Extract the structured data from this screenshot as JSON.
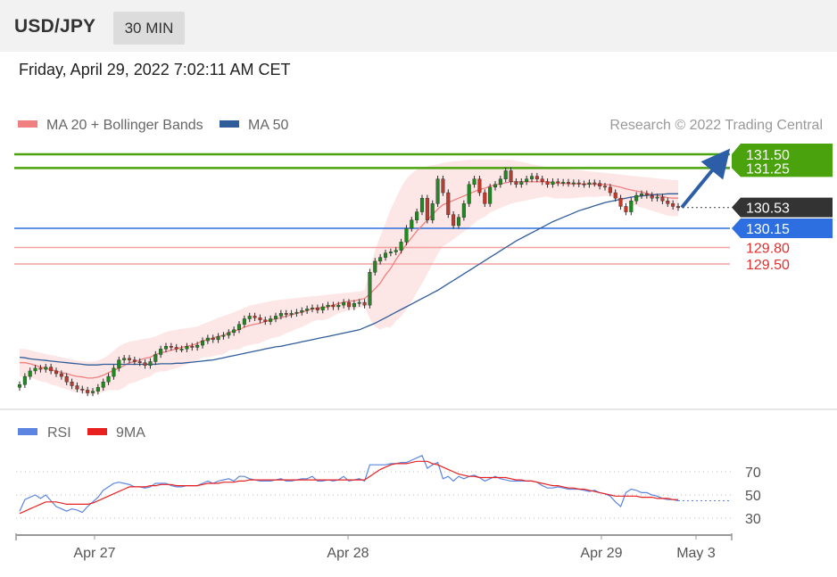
{
  "header": {
    "pair": "USD/JPY",
    "timeframe": "30 MIN"
  },
  "datetime": "Friday, April 29, 2022 7:02:11 AM CET",
  "legend": {
    "ma20_label": "MA 20 + Bollinger Bands",
    "ma50_label": "MA 50",
    "copyright": "Research © 2022 Trading Central",
    "rsi_label": "RSI",
    "rsi_ma_label": "9MA"
  },
  "colors": {
    "green": "#4aa30c",
    "blue_level": "#2d6fe0",
    "red_level": "#e03030",
    "current": "#333333",
    "ma20": "#f08080",
    "ma50": "#2f5d99",
    "band_fill": "#fde2e2",
    "candle_green": "#1f8a1f",
    "candle_red": "#c0392b",
    "rsi": "#5b85e0",
    "rsi_ma": "#e82020",
    "arrow": "#2b5ea7"
  },
  "chart_data": {
    "type": "candlestick",
    "instrument": "USD/JPY",
    "interval": "30 MIN",
    "ylim": [
      127.0,
      131.9
    ],
    "x_ticks": [
      "Apr 27",
      "Apr 28",
      "Apr 29",
      "May 3"
    ],
    "levels": [
      {
        "value": 131.5,
        "label": "131.50",
        "kind": "resistance",
        "color": "#4aa30c"
      },
      {
        "value": 131.25,
        "label": "131.25",
        "kind": "resistance",
        "color": "#4aa30c"
      },
      {
        "value": 130.53,
        "label": "130.53",
        "kind": "current",
        "color": "#333333"
      },
      {
        "value": 130.15,
        "label": "130.15",
        "kind": "pivot",
        "color": "#2d6fe0"
      },
      {
        "value": 129.8,
        "label": "129.80",
        "kind": "support",
        "color": "#e03030"
      },
      {
        "value": 129.5,
        "label": "129.50",
        "kind": "support",
        "color": "#e03030"
      }
    ],
    "closes": [
      127.3,
      127.45,
      127.55,
      127.6,
      127.58,
      127.62,
      127.55,
      127.5,
      127.45,
      127.35,
      127.28,
      127.22,
      127.2,
      127.15,
      127.18,
      127.25,
      127.35,
      127.45,
      127.6,
      127.75,
      127.78,
      127.75,
      127.72,
      127.7,
      127.65,
      127.72,
      127.85,
      127.95,
      128.0,
      127.98,
      127.95,
      127.95,
      128.0,
      127.98,
      128.02,
      128.1,
      128.15,
      128.12,
      128.18,
      128.2,
      128.25,
      128.3,
      128.4,
      128.5,
      128.55,
      128.52,
      128.48,
      128.45,
      128.5,
      128.55,
      128.6,
      128.58,
      128.6,
      128.62,
      128.65,
      128.68,
      128.7,
      128.66,
      128.72,
      128.75,
      128.72,
      128.75,
      128.8,
      128.72,
      128.78,
      128.8,
      128.75,
      129.35,
      129.55,
      129.62,
      129.7,
      129.72,
      129.75,
      129.9,
      130.15,
      130.3,
      130.45,
      130.7,
      130.3,
      130.6,
      131.05,
      130.8,
      130.4,
      130.2,
      130.35,
      130.6,
      130.95,
      131.05,
      130.8,
      130.6,
      130.9,
      130.95,
      131.05,
      131.2,
      131.0,
      130.95,
      131.0,
      131.05,
      131.1,
      131.05,
      131.0,
      130.95,
      131.0,
      130.98,
      130.99,
      130.97,
      130.98,
      130.96,
      130.95,
      130.98,
      130.97,
      130.92,
      130.9,
      130.8,
      130.7,
      130.55,
      130.45,
      130.65,
      130.75,
      130.78,
      130.75,
      130.7,
      130.72,
      130.65,
      130.6,
      130.55,
      130.53
    ],
    "ma20": [
      127.7,
      127.7,
      127.68,
      127.65,
      127.62,
      127.6,
      127.57,
      127.55,
      127.52,
      127.5,
      127.47,
      127.45,
      127.44,
      127.42,
      127.42,
      127.44,
      127.47,
      127.52,
      127.56,
      127.6,
      127.65,
      127.7,
      127.72,
      127.75,
      127.78,
      127.8,
      127.85,
      127.88,
      127.9,
      127.93,
      127.95,
      127.98,
      128.0,
      128.02,
      128.05,
      128.1,
      128.12,
      128.15,
      128.18,
      128.2,
      128.25,
      128.28,
      128.3,
      128.35,
      128.38,
      128.4,
      128.42,
      128.45,
      128.48,
      128.5,
      128.52,
      128.55,
      128.57,
      128.6,
      128.62,
      128.65,
      128.68,
      128.7,
      128.7,
      128.72,
      128.75,
      128.78,
      128.8,
      128.82,
      128.83,
      128.85,
      128.87,
      128.95,
      129.05,
      129.15,
      129.3,
      129.42,
      129.58,
      129.72,
      129.86,
      129.98,
      130.1,
      130.2,
      130.3,
      130.4,
      130.5,
      130.58,
      130.62,
      130.66,
      130.7,
      130.74,
      130.78,
      130.82,
      130.86,
      130.88,
      130.92,
      130.94,
      130.96,
      130.98,
      131.0,
      131.0,
      131.0,
      131.0,
      131.0,
      131.0,
      131.0,
      131.0,
      130.98,
      130.97,
      130.97,
      130.96,
      130.96,
      130.96,
      130.96,
      130.96,
      130.95,
      130.95,
      130.95,
      130.94,
      130.92,
      130.9,
      130.87,
      130.85,
      130.83,
      130.81,
      130.79,
      130.77,
      130.75,
      130.73,
      130.71,
      130.7,
      130.7
    ],
    "ma50": [
      127.8,
      127.79,
      127.77,
      127.76,
      127.75,
      127.74,
      127.73,
      127.72,
      127.71,
      127.7,
      127.69,
      127.68,
      127.67,
      127.66,
      127.66,
      127.66,
      127.67,
      127.67,
      127.67,
      127.67,
      127.67,
      127.67,
      127.67,
      127.67,
      127.67,
      127.67,
      127.67,
      127.68,
      127.68,
      127.68,
      127.69,
      127.69,
      127.7,
      127.71,
      127.72,
      127.73,
      127.74,
      127.75,
      127.77,
      127.79,
      127.81,
      127.83,
      127.85,
      127.87,
      127.89,
      127.91,
      127.93,
      127.95,
      127.97,
      127.99,
      128.0,
      128.02,
      128.04,
      128.06,
      128.08,
      128.1,
      128.12,
      128.14,
      128.16,
      128.18,
      128.2,
      128.22,
      128.24,
      128.26,
      128.28,
      128.3,
      128.34,
      128.38,
      128.42,
      128.47,
      128.52,
      128.57,
      128.62,
      128.67,
      128.72,
      128.77,
      128.82,
      128.87,
      128.92,
      128.97,
      129.02,
      129.08,
      129.14,
      129.2,
      129.26,
      129.32,
      129.38,
      129.44,
      129.5,
      129.56,
      129.62,
      129.68,
      129.74,
      129.8,
      129.86,
      129.92,
      129.97,
      130.02,
      130.07,
      130.12,
      130.17,
      130.22,
      130.27,
      130.31,
      130.35,
      130.39,
      130.43,
      130.47,
      130.5,
      130.53,
      130.56,
      130.59,
      130.62,
      130.64,
      130.66,
      130.68,
      130.7,
      130.72,
      130.73,
      130.74,
      130.75,
      130.76,
      130.77,
      130.77,
      130.78,
      130.78,
      130.78
    ],
    "band_upper": [
      127.95,
      127.95,
      127.93,
      127.9,
      127.88,
      127.86,
      127.84,
      127.82,
      127.8,
      127.78,
      127.76,
      127.74,
      127.73,
      127.72,
      127.72,
      127.74,
      127.78,
      127.84,
      127.92,
      128.0,
      128.05,
      128.08,
      128.1,
      128.12,
      128.14,
      128.15,
      128.18,
      128.22,
      128.26,
      128.28,
      128.3,
      128.32,
      128.33,
      128.34,
      128.36,
      128.4,
      128.44,
      128.48,
      128.52,
      128.55,
      128.58,
      128.62,
      128.66,
      128.7,
      128.74,
      128.76,
      128.78,
      128.8,
      128.82,
      128.84,
      128.85,
      128.86,
      128.87,
      128.88,
      128.89,
      128.9,
      128.91,
      128.92,
      128.93,
      128.94,
      128.95,
      128.96,
      128.97,
      128.98,
      128.99,
      129.0,
      129.02,
      129.4,
      129.75,
      130.0,
      130.25,
      130.5,
      130.7,
      130.9,
      131.05,
      131.15,
      131.22,
      131.26,
      131.28,
      131.3,
      131.32,
      131.34,
      131.36,
      131.37,
      131.38,
      131.39,
      131.4,
      131.4,
      131.4,
      131.4,
      131.4,
      131.4,
      131.4,
      131.4,
      131.4,
      131.38,
      131.36,
      131.34,
      131.32,
      131.3,
      131.28,
      131.27,
      131.26,
      131.25,
      131.24,
      131.23,
      131.22,
      131.21,
      131.2,
      131.19,
      131.18,
      131.17,
      131.16,
      131.15,
      131.14,
      131.13,
      131.12,
      131.11,
      131.1,
      131.09,
      131.08,
      131.07,
      131.06,
      131.05,
      131.04,
      131.03,
      131.03
    ],
    "band_lower": [
      127.45,
      127.45,
      127.43,
      127.4,
      127.36,
      127.34,
      127.3,
      127.28,
      127.24,
      127.22,
      127.18,
      127.16,
      127.15,
      127.12,
      127.12,
      127.14,
      127.16,
      127.2,
      127.2,
      127.2,
      127.25,
      127.32,
      127.34,
      127.38,
      127.42,
      127.45,
      127.52,
      127.54,
      127.54,
      127.58,
      127.6,
      127.64,
      127.67,
      127.7,
      127.74,
      127.8,
      127.8,
      127.82,
      127.84,
      127.85,
      127.92,
      127.94,
      127.94,
      128.0,
      128.02,
      128.04,
      128.06,
      128.1,
      128.14,
      128.16,
      128.19,
      128.24,
      128.27,
      128.32,
      128.35,
      128.4,
      128.45,
      128.48,
      128.47,
      128.5,
      128.55,
      128.6,
      128.63,
      128.66,
      128.67,
      128.7,
      128.72,
      128.5,
      128.35,
      128.3,
      128.35,
      128.34,
      128.46,
      128.54,
      128.67,
      128.81,
      128.98,
      129.14,
      129.32,
      129.5,
      129.68,
      129.82,
      129.88,
      129.95,
      130.02,
      130.09,
      130.16,
      130.24,
      130.32,
      130.36,
      130.44,
      130.48,
      130.52,
      130.56,
      130.6,
      130.62,
      130.64,
      130.66,
      130.68,
      130.7,
      130.72,
      130.73,
      130.7,
      130.69,
      130.7,
      130.69,
      130.7,
      130.71,
      130.72,
      130.73,
      130.72,
      130.73,
      130.74,
      130.73,
      130.7,
      130.67,
      130.62,
      130.59,
      130.56,
      130.53,
      130.5,
      130.47,
      130.44,
      130.41,
      130.38,
      130.37,
      130.37
    ],
    "rsi": {
      "ylim": [
        20,
        85
      ],
      "ticks": [
        70,
        50,
        30
      ],
      "rsi_values": [
        36,
        46,
        48,
        50,
        47,
        50,
        45,
        40,
        38,
        36,
        38,
        37,
        35,
        40,
        44,
        48,
        54,
        57,
        60,
        61,
        60,
        59,
        57,
        57,
        56,
        57,
        60,
        60,
        60,
        58,
        57,
        57,
        58,
        58,
        58,
        60,
        62,
        60,
        62,
        63,
        64,
        62,
        66,
        66,
        64,
        63,
        62,
        62,
        62,
        63,
        64,
        62,
        62,
        63,
        64,
        64,
        66,
        62,
        62,
        63,
        62,
        63,
        66,
        62,
        63,
        64,
        62,
        76,
        76,
        76,
        76,
        77,
        77,
        78,
        78,
        80,
        82,
        84,
        73,
        76,
        78,
        64,
        66,
        62,
        66,
        64,
        66,
        67,
        65,
        62,
        64,
        66,
        64,
        63,
        62,
        62,
        62,
        62,
        62,
        61,
        58,
        56,
        56,
        57,
        56,
        55,
        55,
        55,
        54,
        53,
        54,
        52,
        51,
        49,
        44,
        40,
        52,
        55,
        54,
        52,
        52,
        50,
        49,
        47,
        46,
        46,
        45
      ],
      "ma_values": [
        34,
        36,
        38,
        40,
        42,
        44,
        44,
        44,
        43,
        42,
        42,
        42,
        42,
        42,
        43,
        45,
        47,
        49,
        51,
        53,
        55,
        57,
        57,
        57,
        57,
        58,
        58,
        59,
        59,
        59,
        58,
        58,
        58,
        58,
        58,
        59,
        60,
        60,
        60,
        61,
        61,
        61,
        62,
        62,
        63,
        63,
        63,
        63,
        63,
        63,
        63,
        63,
        63,
        63,
        63,
        63,
        63,
        63,
        63,
        63,
        63,
        63,
        63,
        63,
        63,
        63,
        63,
        66,
        69,
        72,
        74,
        76,
        77,
        77,
        77,
        78,
        79,
        79,
        79,
        77,
        76,
        74,
        72,
        70,
        68,
        67,
        66,
        66,
        65,
        65,
        65,
        65,
        65,
        65,
        64,
        63,
        63,
        62,
        62,
        61,
        60,
        59,
        58,
        58,
        57,
        56,
        56,
        55,
        55,
        54,
        53,
        52,
        51,
        50,
        49,
        49,
        49,
        49,
        49,
        48,
        48,
        48,
        47,
        47,
        47,
        46,
        46
      ]
    }
  }
}
